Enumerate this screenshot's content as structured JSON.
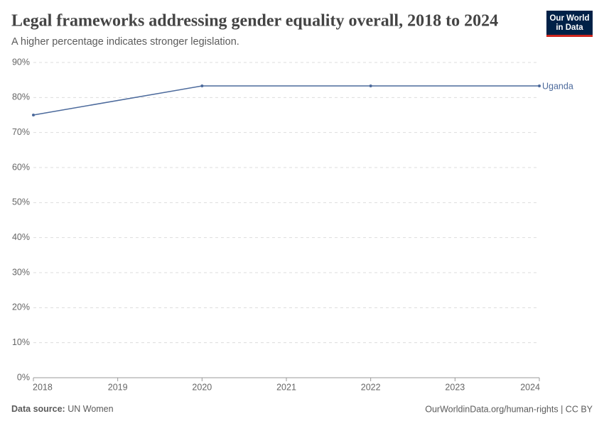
{
  "chart_data": {
    "type": "line",
    "title": "Legal frameworks addressing gender equality overall, 2018 to 2024",
    "subtitle": "A higher percentage indicates stronger legislation.",
    "x": [
      2018,
      2020,
      2022,
      2024
    ],
    "series": [
      {
        "name": "Uganda",
        "color": "#4c6a9c",
        "values": [
          75,
          83.3,
          83.3,
          83.3
        ]
      }
    ],
    "xlim": [
      2018,
      2024
    ],
    "xticks": [
      2018,
      2019,
      2020,
      2021,
      2022,
      2023,
      2024
    ],
    "ylim": [
      0,
      90
    ],
    "yticks": [
      {
        "value": 0,
        "label": "0%"
      },
      {
        "value": 10,
        "label": "10%"
      },
      {
        "value": 20,
        "label": "20%"
      },
      {
        "value": 30,
        "label": "30%"
      },
      {
        "value": 40,
        "label": "40%"
      },
      {
        "value": 50,
        "label": "50%"
      },
      {
        "value": 60,
        "label": "60%"
      },
      {
        "value": 70,
        "label": "70%"
      },
      {
        "value": 80,
        "label": "80%"
      },
      {
        "value": 90,
        "label": "90%"
      }
    ],
    "grid": true
  },
  "logo": {
    "line1": "Our World",
    "line2": "in Data"
  },
  "footer": {
    "source_label": "Data source:",
    "source": "UN Women",
    "credit": "OurWorldinData.org/human-rights | CC BY"
  }
}
